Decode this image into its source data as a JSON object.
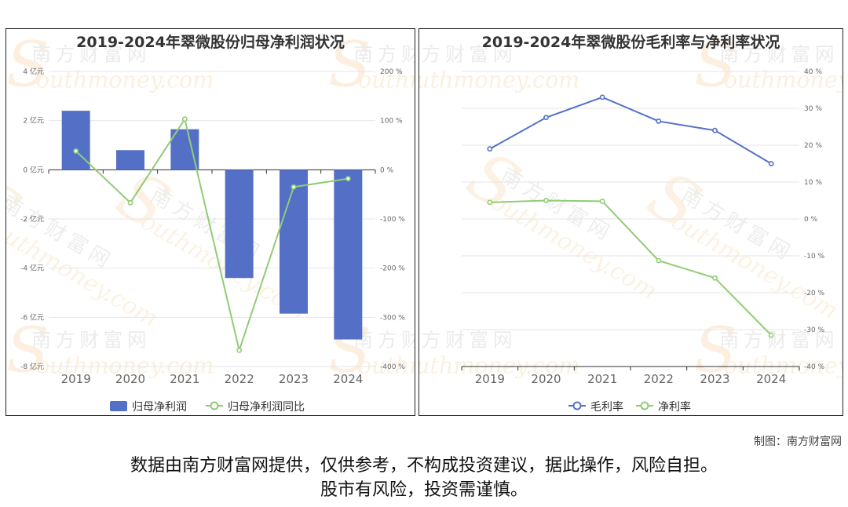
{
  "watermark": {
    "cn": "南方财富网",
    "en": "outhmoney.com",
    "s": "S"
  },
  "left_chart": {
    "title": "2019-2024年翠微股份归母净利润状况",
    "legend": {
      "bar": "归母净利润",
      "line": "归母净利润同比"
    },
    "colors": {
      "bar": "#5470c6",
      "line": "#91cc75"
    },
    "y_left_ticks": [
      "4 亿元",
      "2 亿元",
      "0 亿元",
      "-2 亿元",
      "-4 亿元",
      "-6 亿元",
      "-8 亿元"
    ],
    "y_right_ticks": [
      "200 %",
      "100 %",
      "0 %",
      "-100 %",
      "-200 %",
      "-300 %",
      "-400 %"
    ],
    "x_ticks": [
      "2019",
      "2020",
      "2021",
      "2022",
      "2023",
      "2024"
    ]
  },
  "right_chart": {
    "title": "2019-2024年翠微股份毛利率与净利率状况",
    "legend": {
      "s1": "毛利率",
      "s2": "净利率"
    },
    "colors": {
      "s1": "#5470c6",
      "s2": "#91cc75"
    },
    "y_right_ticks": [
      "40 %",
      "30 %",
      "20 %",
      "10 %",
      "0 %",
      "-10 %",
      "-20 %",
      "-30 %",
      "-40 %"
    ],
    "x_ticks": [
      "2019",
      "2020",
      "2021",
      "2022",
      "2023",
      "2024"
    ]
  },
  "chart_data": [
    {
      "type": "bar",
      "title": "2019-2024年翠微股份归母净利润状况",
      "categories": [
        "2019",
        "2020",
        "2021",
        "2022",
        "2023",
        "2024"
      ],
      "series": [
        {
          "name": "归母净利润",
          "type": "bar",
          "axis": "left",
          "unit": "亿元",
          "values": [
            2.4,
            0.8,
            1.65,
            -4.4,
            -5.85,
            -6.9
          ]
        },
        {
          "name": "归母净利润同比",
          "type": "line",
          "axis": "right",
          "unit": "%",
          "values": [
            38,
            -67,
            103,
            -367,
            -35,
            -18
          ]
        }
      ],
      "ylim_left": [
        -8,
        4
      ],
      "ylim_right": [
        -400,
        200
      ],
      "grid": true,
      "legend_position": "bottom"
    },
    {
      "type": "line",
      "title": "2019-2024年翠微股份毛利率与净利率状况",
      "categories": [
        "2019",
        "2020",
        "2021",
        "2022",
        "2023",
        "2024"
      ],
      "series": [
        {
          "name": "毛利率",
          "unit": "%",
          "values": [
            19,
            27.5,
            33,
            26.5,
            24,
            15
          ]
        },
        {
          "name": "净利率",
          "unit": "%",
          "values": [
            4.5,
            5,
            4.8,
            -11.3,
            -16,
            -31.5
          ]
        }
      ],
      "ylim": [
        -40,
        40
      ],
      "y_axis_side": "right",
      "grid": true,
      "legend_position": "bottom"
    }
  ],
  "footer": {
    "credit": "制图：南方财富网",
    "disclaimer_line1": "数据由南方财富网提供，仅供参考，不构成投资建议，据此操作，风险自担。",
    "disclaimer_line2": "股市有风险，投资需谨慎。"
  }
}
